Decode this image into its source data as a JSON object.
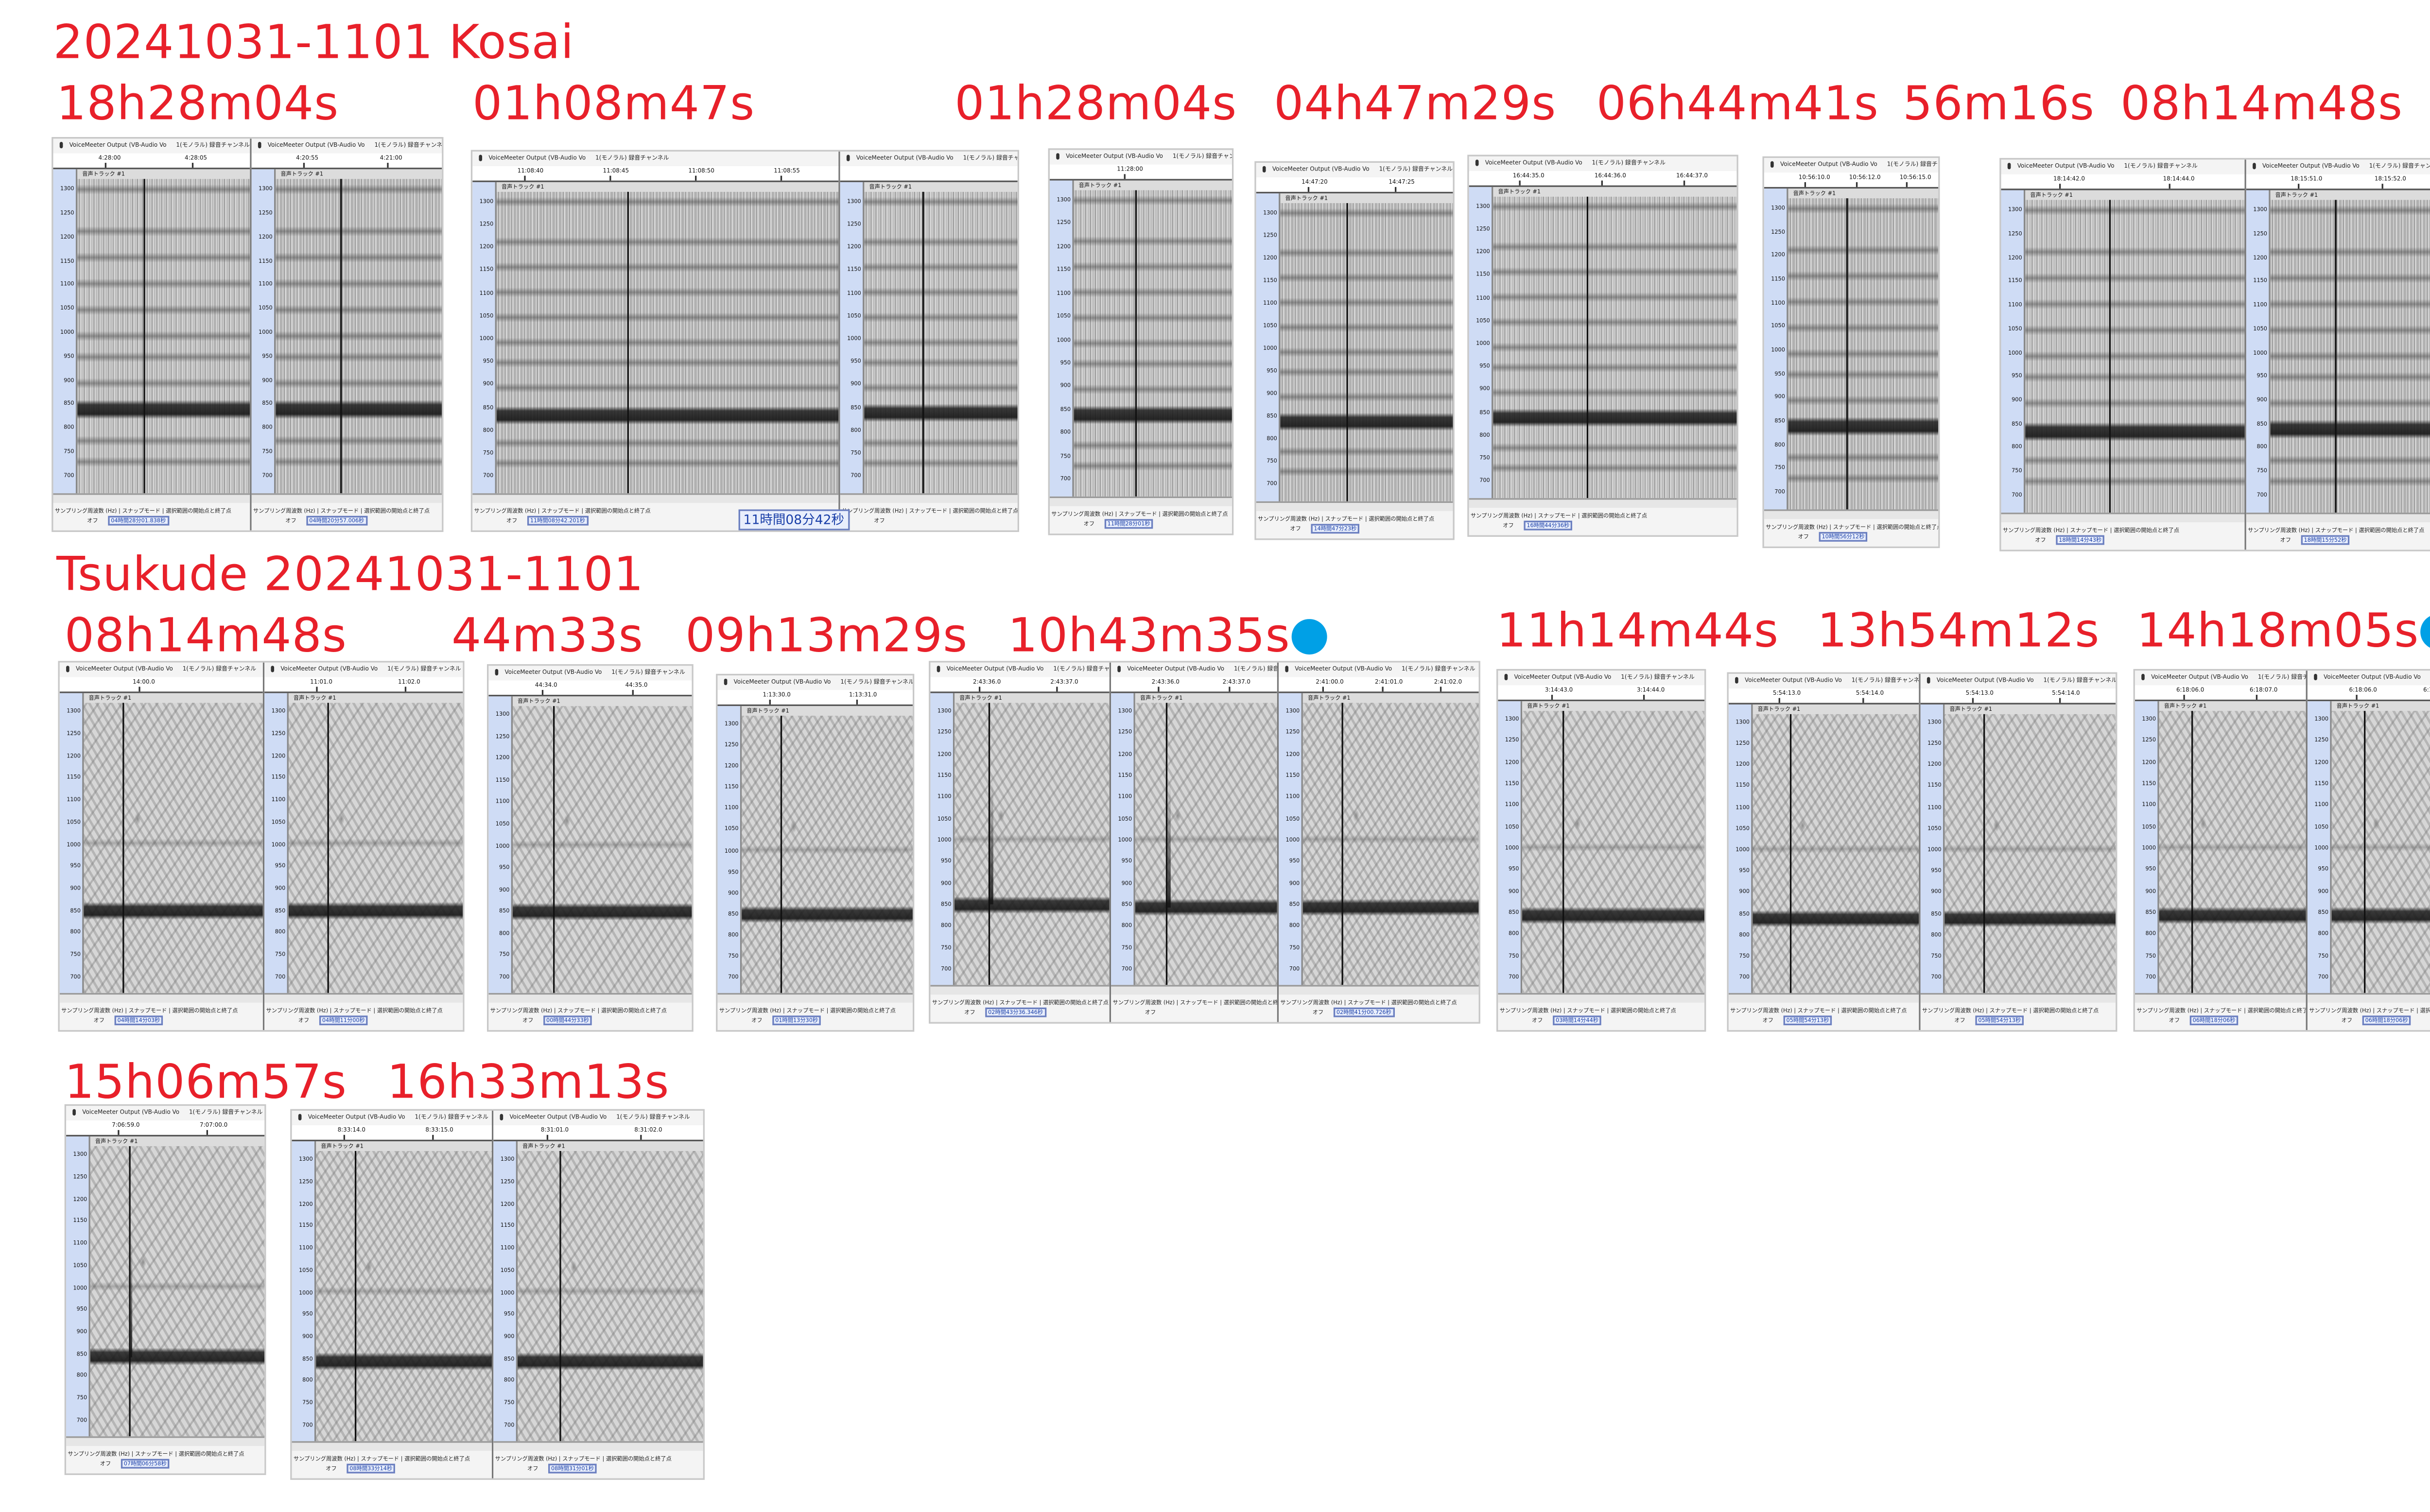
{
  "headings": {
    "kosai": "20241031-1101  Kosai",
    "tsukude": "Tsukude   20241031-1101"
  },
  "colors": {
    "label": "#e8202a",
    "marker_dot": "#00a0e6",
    "axis_strip": "#cfdcf5",
    "selection_text": "#1a3fa8"
  },
  "ui_text": {
    "device": "VoiceMeeter Output (VB-Audio Vo",
    "channel": "1(モノラル) 録音チャンネル",
    "track": "音声トラック #1",
    "footer_labels": "サンプリング周波数 (Hz) | スナップモード | 選択範囲の開始点と終了点",
    "snap_value": "オフ",
    "freq_ticks": [
      "1300",
      "1250",
      "1200",
      "1150",
      "1100",
      "1050",
      "1000",
      "950",
      "900",
      "850",
      "800",
      "750",
      "700"
    ]
  },
  "recordings": [
    {
      "label": "18h28m04s",
      "site": "Kosai",
      "marked": false,
      "subs": [
        {
          "ticks": [
            "4:28:00",
            "4:28:05"
          ],
          "selection": "04時間28分01.838秒",
          "call_band_hz": 860
        },
        {
          "ticks": [
            "4:20:55",
            "4:21:00"
          ],
          "selection": "04時間20分57.006秒",
          "call_band_hz": 860
        }
      ]
    },
    {
      "label": "01h08m47s",
      "site": "Kosai",
      "marked": false,
      "big_readout": "11時間08分42秒",
      "subs": [
        {
          "ticks": [
            "11:08:40",
            "11:08:45",
            "11:08:50",
            "11:08:55"
          ],
          "selection": "11時間08分42.201秒",
          "call_band_hz": 855
        },
        {
          "ticks": [],
          "selection": "",
          "call_band_hz": 860
        }
      ]
    },
    {
      "label": "01h28m04s",
      "site": "Kosai",
      "marked": false,
      "subs": [
        {
          "ticks": [
            "11:28:00"
          ],
          "selection": "11時間28分01秒",
          "call_band_hz": 860
        }
      ]
    },
    {
      "label": "04h47m29s",
      "site": "Kosai",
      "marked": false,
      "subs": [
        {
          "ticks": [
            "14:47:20",
            "14:47:25"
          ],
          "selection": "14時間47分23秒",
          "call_band_hz": 860
        }
      ]
    },
    {
      "label": "06h44m41s",
      "site": "Kosai",
      "marked": false,
      "subs": [
        {
          "ticks": [
            "16:44:35.0",
            "16:44:36.0",
            "16:44:37.0"
          ],
          "selection": "16時間44分36秒",
          "call_band_hz": 860
        }
      ]
    },
    {
      "label": "56m16s",
      "site": "Kosai",
      "marked": false,
      "subs": [
        {
          "ticks": [
            "10:56:10.0",
            "10:56:12.0",
            "10:56:15.0"
          ],
          "selection": "10時間56分12秒",
          "call_band_hz": 860
        }
      ]
    },
    {
      "label": "08h14m48s",
      "site": "Kosai",
      "marked": false,
      "subs": [
        {
          "ticks": [
            "18:14:42.0",
            "18:14:44.0"
          ],
          "selection": "18時間14分43秒",
          "call_band_hz": 855
        },
        {
          "ticks": [
            "18:15:51.0",
            "18:15:52.0"
          ],
          "selection": "18時間15分52秒",
          "call_band_hz": 860
        }
      ]
    },
    {
      "label": "08h14m48s",
      "site": "Tsukude",
      "marked": false,
      "subs": [
        {
          "ticks": [
            "14:00.0"
          ],
          "selection": "04時間14分03秒",
          "call_band_hz": 870
        },
        {
          "ticks": [
            "11:01.0",
            "11:02.0"
          ],
          "selection": "04時間11分00秒",
          "call_band_hz": 870
        }
      ]
    },
    {
      "label": "44m33s",
      "site": "Tsukude",
      "marked": false,
      "subs": [
        {
          "ticks": [
            "44:34.0",
            "44:35.0"
          ],
          "selection": "00時間44分33秒",
          "call_band_hz": 870
        }
      ]
    },
    {
      "label": "09h13m29s",
      "site": "Tsukude",
      "marked": false,
      "subs": [
        {
          "ticks": [
            "1:13:30.0",
            "1:13:31.0"
          ],
          "selection": "01時間13分30秒",
          "call_band_hz": 870
        }
      ]
    },
    {
      "label": "10h43m35s",
      "site": "Tsukude",
      "marked": true,
      "subs": [
        {
          "ticks": [
            "2:43:36.0",
            "2:43:37.0"
          ],
          "selection": "02時間43分36.346秒",
          "call_band_hz": 870,
          "upsweep": true
        },
        {
          "ticks": [
            "2:43:36.0",
            "2:43:37.0"
          ],
          "selection": "",
          "call_band_hz": 865,
          "upsweep": true
        },
        {
          "ticks": [
            "2:41:00.0",
            "2:41:01.0",
            "2:41:02.0"
          ],
          "selection": "02時間41分00.726秒",
          "call_band_hz": 865
        }
      ]
    },
    {
      "label": "11h14m44s",
      "site": "Tsukude",
      "marked": false,
      "subs": [
        {
          "ticks": [
            "3:14:43.0",
            "3:14:44.0"
          ],
          "selection": "03時間14分44秒",
          "call_band_hz": 865
        }
      ]
    },
    {
      "label": "13h54m12s",
      "site": "Tsukude",
      "marked": false,
      "subs": [
        {
          "ticks": [
            "5:54:13.0",
            "5:54:14.0"
          ],
          "selection": "05時間54分13秒",
          "call_band_hz": 860
        },
        {
          "ticks": [
            "5:54:13.0",
            "5:54:14.0"
          ],
          "selection": "05時間54分13秒",
          "call_band_hz": 860
        }
      ]
    },
    {
      "label": "14h18m05s",
      "site": "Tsukude",
      "marked": true,
      "subs": [
        {
          "ticks": [
            "6:18:06.0",
            "6:18:07.0"
          ],
          "selection": "06時間18分06秒",
          "call_band_hz": 865
        },
        {
          "ticks": [
            "6:18:06.0",
            "6:18:07.0"
          ],
          "selection": "06時間18分06秒",
          "call_band_hz": 865
        }
      ]
    },
    {
      "label": "15h06m57s",
      "site": "Tsukude",
      "marked": false,
      "subs": [
        {
          "ticks": [
            "7:06:59.0",
            "7:07:00.0"
          ],
          "selection": "07時間06分58秒",
          "call_band_hz": 865,
          "upsweep": true
        }
      ]
    },
    {
      "label": "16h33m13s",
      "site": "Tsukude",
      "marked": false,
      "subs": [
        {
          "ticks": [
            "8:33:14.0",
            "8:33:15.0"
          ],
          "selection": "08時間33分14秒",
          "call_band_hz": 865
        },
        {
          "ticks": [
            "8:31:01.0",
            "8:31:02.0"
          ],
          "selection": "08時間31分01秒",
          "call_band_hz": 865
        }
      ]
    }
  ]
}
